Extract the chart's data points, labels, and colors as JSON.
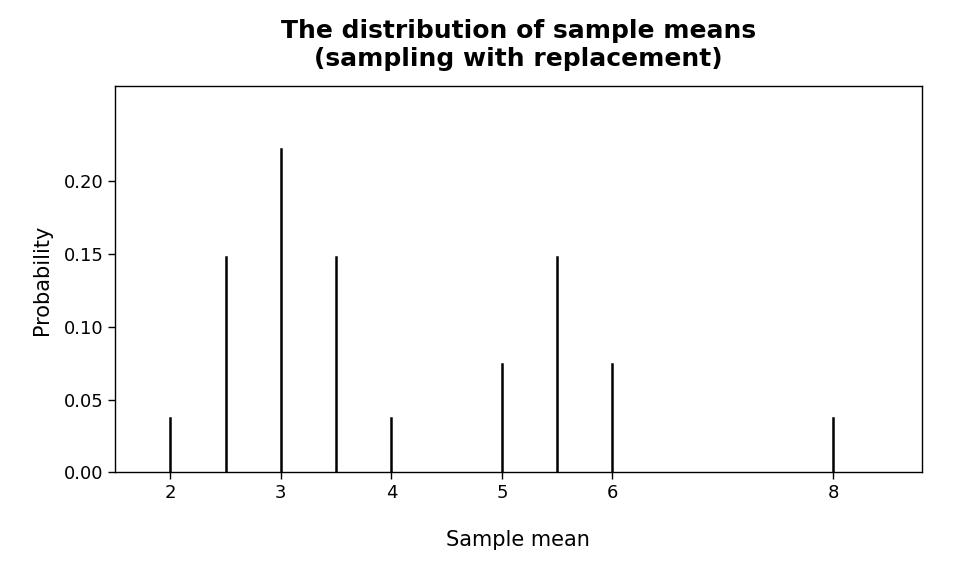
{
  "title": "The distribution of sample means\n(sampling with replacement)",
  "xlabel": "Sample mean",
  "ylabel": "Probability",
  "x_values": [
    2.0,
    2.5,
    3.0,
    3.5,
    4.0,
    5.0,
    5.5,
    6.0,
    8.0
  ],
  "probabilities": [
    0.037,
    0.1481,
    0.2222,
    0.1481,
    0.037,
    0.0741,
    0.1481,
    0.0741,
    0.037
  ],
  "xlim": [
    1.5,
    8.8
  ],
  "ylim": [
    0.0,
    0.265
  ],
  "xticks": [
    2,
    3,
    4,
    5,
    6,
    8
  ],
  "yticks": [
    0.0,
    0.05,
    0.1,
    0.15,
    0.2
  ],
  "title_fontsize": 18,
  "label_fontsize": 15,
  "tick_fontsize": 13,
  "line_color": "black",
  "line_width": 1.8,
  "background_color": "#ffffff"
}
